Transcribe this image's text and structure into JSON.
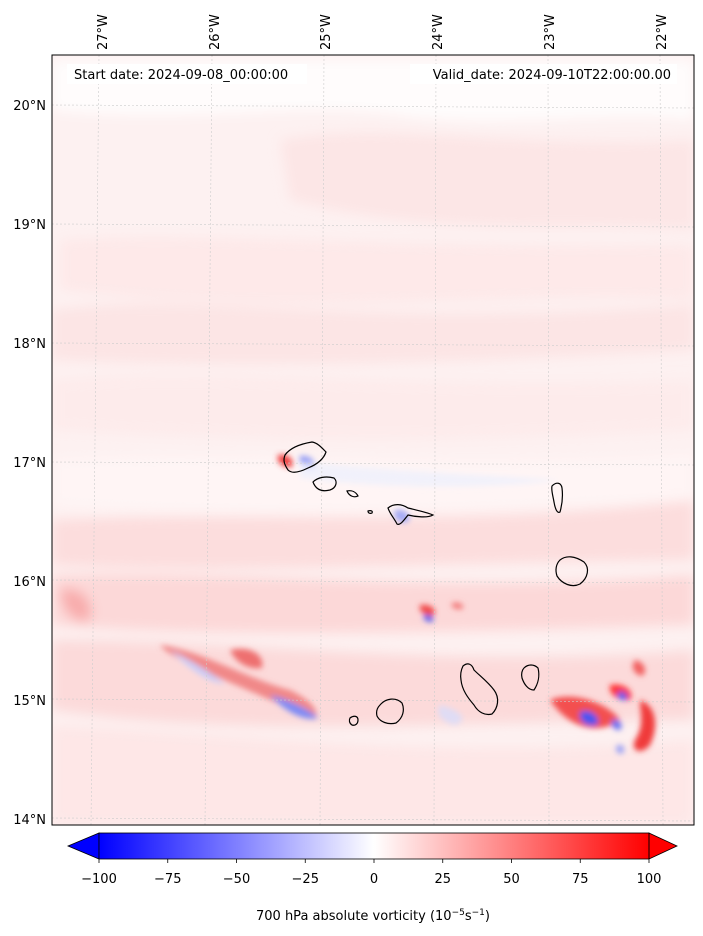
{
  "header": {
    "start_date": "Start date: 2024-09-08_00:00:00",
    "valid_date": "Valid_date: 2024-09-10T22:00:00.00"
  },
  "axes": {
    "lon_labels": [
      "27°W",
      "26°W",
      "25°W",
      "24°W",
      "23°W",
      "22°W"
    ],
    "lat_labels": [
      "20°N",
      "19°N",
      "18°N",
      "17°N",
      "16°N",
      "15°N",
      "14°N"
    ]
  },
  "colorbar": {
    "label_prefix": "700 hPa absolute vorticity (10",
    "label_exp1": "−5",
    "label_mid": "s",
    "label_exp2": "−1",
    "label_suffix": ")",
    "ticks": [
      "−100",
      "−75",
      "−50",
      "−25",
      "0",
      "25",
      "50",
      "75",
      "100"
    ],
    "vmin": -100,
    "vmax": 100,
    "neg_color": "#0000ff",
    "pos_color": "#ff0000",
    "mid_color": "#ffffff"
  },
  "colors": {
    "background_field": "#fdf1f1",
    "coast": "#000000",
    "grid": "#cccccc"
  }
}
